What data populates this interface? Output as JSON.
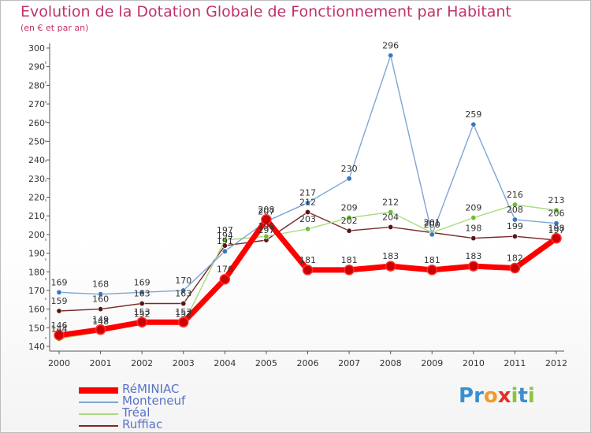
{
  "title": "Evolution de la Dotation Globale de Fonctionnement par Habitant",
  "subtitle": "(en € et par an)",
  "logo": {
    "text": "Proxiti",
    "letters": [
      {
        "ch": "P",
        "color": "#3a8fd0"
      },
      {
        "ch": "r",
        "color": "#3a8fd0"
      },
      {
        "ch": "o",
        "color": "#f29a2e"
      },
      {
        "ch": "x",
        "color": "#e0322a"
      },
      {
        "ch": "i",
        "color": "#8cc43c"
      },
      {
        "ch": "t",
        "color": "#3a8fd0"
      },
      {
        "ch": "i",
        "color": "#8cc43c"
      }
    ]
  },
  "chart_data": {
    "type": "line",
    "title": "Evolution de la Dotation Globale de Fonctionnement par Habitant",
    "subtitle": "(en € et par an)",
    "xlabel": "",
    "ylabel": "",
    "x": [
      "2000",
      "2001",
      "2002",
      "2003",
      "2004",
      "2005",
      "2006",
      "2007",
      "2008",
      "2009",
      "2010",
      "2011",
      "2012"
    ],
    "ylim": [
      140,
      300
    ],
    "yticks": [
      "140",
      "150",
      "160",
      "170",
      "180",
      "190",
      "200",
      "210",
      "220",
      "230",
      "240",
      "250",
      "260",
      "270",
      "280",
      "290",
      "300"
    ],
    "grid": false,
    "legend_position": "bottom-left",
    "series": [
      {
        "name": "RéMINIAC",
        "color": "#ff0000",
        "marker_color": "#cc0000",
        "values": [
          146,
          149,
          153,
          153,
          176,
          208,
          181,
          181,
          183,
          181,
          183,
          182,
          198
        ],
        "labels": [
          "146",
          "149",
          "153",
          "153",
          "176",
          "208",
          "181",
          "181",
          "183",
          "181",
          "183",
          "182",
          "198"
        ]
      },
      {
        "name": "Monteneuf",
        "color": "#7ea6d4",
        "marker_color": "#3a78c0",
        "values": [
          169,
          168,
          169,
          170,
          191,
          207,
          217,
          230,
          296,
          200,
          259,
          208,
          206
        ],
        "labels": [
          "169",
          "168",
          "169",
          "170",
          "191",
          "207",
          "217",
          "230",
          "296",
          "200",
          "259",
          "208",
          "206"
        ]
      },
      {
        "name": "Tréal",
        "color": "#a8dc7c",
        "marker_color": "#6cc030",
        "values": [
          144,
          148,
          152,
          152,
          197,
          199,
          203,
          209,
          212,
          201,
          209,
          216,
          213
        ],
        "labels": [
          "144",
          "148",
          "152",
          "152",
          "197",
          "199",
          "203",
          "209",
          "212",
          "201",
          "209",
          "216",
          "213"
        ]
      },
      {
        "name": "Ruffiac",
        "color": "#7a2a2a",
        "marker_color": "#5a1414",
        "values": [
          159,
          160,
          163,
          163,
          194,
          197,
          212,
          202,
          204,
          201,
          198,
          199,
          197
        ],
        "labels": [
          "159",
          "160",
          "163",
          "163",
          "194",
          "197",
          "212",
          "202",
          "204",
          "201",
          "198",
          "199",
          "197"
        ]
      }
    ]
  }
}
